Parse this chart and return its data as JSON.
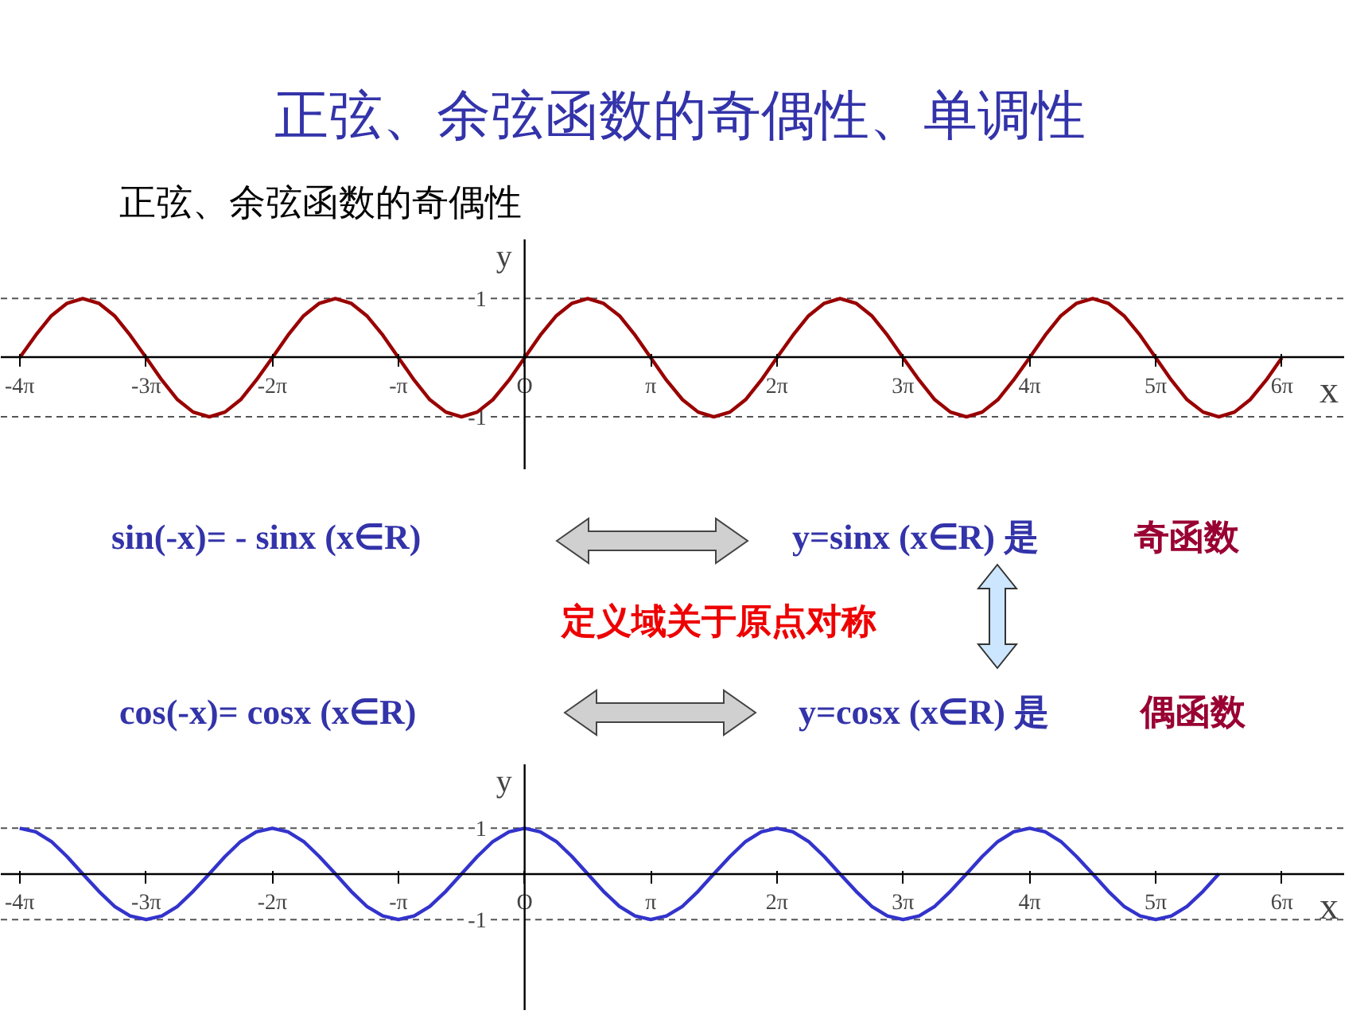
{
  "chart_data": [
    {
      "type": "line",
      "title": "正弦、余弦函数的奇偶性、单调性",
      "subtitle": "正弦、余弦函数的奇偶性",
      "xlabel": "x",
      "ylabel": "y",
      "xlim": [
        -13.04,
        20.42
      ],
      "ylim": [
        -1.9,
        2.0
      ],
      "xticks": [
        {
          "value": -12.57,
          "label": "-4π"
        },
        {
          "value": -9.42,
          "label": "-3π"
        },
        {
          "value": -6.28,
          "label": "-2π"
        },
        {
          "value": -3.14,
          "label": "-π"
        },
        {
          "value": 0,
          "label": "O"
        },
        {
          "value": 3.14,
          "label": "π"
        },
        {
          "value": 6.28,
          "label": "2π"
        },
        {
          "value": 9.42,
          "label": "3π"
        },
        {
          "value": 12.57,
          "label": "4π"
        },
        {
          "value": 15.71,
          "label": "5π"
        },
        {
          "value": 18.85,
          "label": "6π"
        }
      ],
      "yticks": [
        -1,
        1
      ],
      "ref_lines": [
        {
          "axis": "y",
          "value": 1,
          "line_style": "dashed",
          "color": "#555555"
        },
        {
          "axis": "y",
          "value": -1,
          "line_style": "dashed",
          "color": "#555555"
        }
      ],
      "grid": false,
      "x": [
        -12.57,
        -12.17,
        -11.78,
        -11.39,
        -11.0,
        -10.6,
        -10.21,
        -9.82,
        -9.42,
        -9.03,
        -8.64,
        -8.25,
        -7.85,
        -7.46,
        -7.07,
        -6.68,
        -6.28,
        -5.89,
        -5.5,
        -5.11,
        -4.71,
        -4.32,
        -3.93,
        -3.53,
        -3.14,
        -2.75,
        -2.36,
        -1.96,
        -1.57,
        -1.18,
        -0.79,
        -0.39,
        0,
        0.39,
        0.79,
        1.18,
        1.57,
        1.96,
        2.36,
        2.75,
        3.14,
        3.53,
        3.93,
        4.32,
        4.71,
        5.11,
        5.5,
        5.89,
        6.28,
        6.68,
        7.07,
        7.46,
        7.85,
        8.25,
        8.64,
        9.03,
        9.42,
        9.82,
        10.21,
        10.6,
        11.0,
        11.39,
        11.78,
        12.17,
        12.57,
        12.96,
        13.35,
        13.74,
        14.14,
        14.53,
        14.92,
        15.32,
        15.71,
        16.1,
        16.49,
        16.89,
        17.28,
        17.67,
        18.06,
        18.46,
        18.85
      ],
      "series": [
        {
          "color": "#990000",
          "values": [
            0,
            0.38,
            0.71,
            0.92,
            1,
            0.92,
            0.71,
            0.38,
            0,
            -0.38,
            -0.71,
            -0.92,
            -1,
            -0.92,
            -0.71,
            -0.38,
            0,
            0.38,
            0.71,
            0.92,
            1,
            0.92,
            0.71,
            0.38,
            0,
            -0.38,
            -0.71,
            -0.92,
            -1,
            -0.92,
            -0.71,
            -0.38,
            0,
            0.38,
            0.71,
            0.92,
            1,
            0.92,
            0.71,
            0.38,
            0,
            -0.38,
            -0.71,
            -0.92,
            -1,
            -0.92,
            -0.71,
            -0.38,
            0,
            0.38,
            0.71,
            0.92,
            1,
            0.92,
            0.71,
            0.38,
            0,
            -0.38,
            -0.71,
            -0.92,
            -1,
            -0.92,
            -0.71,
            -0.38,
            0,
            0.38,
            0.71,
            0.92,
            1,
            0.92,
            0.71,
            0.38,
            0,
            -0.38,
            -0.71,
            -0.92,
            -1,
            -0.92,
            -0.71,
            -0.38,
            0
          ]
        }
      ]
    },
    {
      "type": "line",
      "xlabel": "x",
      "ylabel": "y",
      "xlim": [
        -13.04,
        20.42
      ],
      "ylim": [
        -3.0,
        2.4
      ],
      "xticks": [
        {
          "value": -12.57,
          "label": "-4π"
        },
        {
          "value": -9.42,
          "label": "-3π"
        },
        {
          "value": -6.28,
          "label": "-2π"
        },
        {
          "value": -3.14,
          "label": "-π"
        },
        {
          "value": 0,
          "label": "O"
        },
        {
          "value": 3.14,
          "label": "π"
        },
        {
          "value": 6.28,
          "label": "2π"
        },
        {
          "value": 9.42,
          "label": "3π"
        },
        {
          "value": 12.57,
          "label": "4π"
        },
        {
          "value": 15.71,
          "label": "5π"
        },
        {
          "value": 18.85,
          "label": "6π"
        }
      ],
      "yticks": [
        -1,
        1
      ],
      "ref_lines": [
        {
          "axis": "y",
          "value": 1,
          "line_style": "dashed",
          "color": "#555555"
        },
        {
          "axis": "y",
          "value": -1,
          "line_style": "dashed",
          "color": "#555555"
        }
      ],
      "grid": false,
      "annotations": [
        "sin(-x)= - sinx   (x∈R)",
        "y=sinx  (x∈R)  是",
        "奇函数",
        "定义域关于原点对称",
        "cos(-x)= cosx   (x∈R)",
        "y=cosx  (x∈R)  是",
        "偶函数"
      ],
      "x": [
        -12.57,
        -12.17,
        -11.78,
        -11.39,
        -11.0,
        -10.6,
        -10.21,
        -9.82,
        -9.42,
        -9.03,
        -8.64,
        -8.25,
        -7.85,
        -7.46,
        -7.07,
        -6.68,
        -6.28,
        -5.89,
        -5.5,
        -5.11,
        -4.71,
        -4.32,
        -3.93,
        -3.53,
        -3.14,
        -2.75,
        -2.36,
        -1.96,
        -1.57,
        -1.18,
        -0.79,
        -0.39,
        0,
        0.39,
        0.79,
        1.18,
        1.57,
        1.96,
        2.36,
        2.75,
        3.14,
        3.53,
        3.93,
        4.32,
        4.71,
        5.11,
        5.5,
        5.89,
        6.28,
        6.68,
        7.07,
        7.46,
        7.85,
        8.25,
        8.64,
        9.03,
        9.42,
        9.82,
        10.21,
        10.6,
        11.0,
        11.39,
        11.78,
        12.17,
        12.57,
        12.96,
        13.35,
        13.74,
        14.14,
        14.53,
        14.92,
        15.32,
        15.71,
        16.1,
        16.49,
        16.89,
        17.28
      ],
      "series": [
        {
          "color": "#3333cc",
          "values": [
            1,
            0.92,
            0.71,
            0.38,
            0,
            -0.38,
            -0.71,
            -0.92,
            -1,
            -0.92,
            -0.71,
            -0.38,
            0,
            0.38,
            0.71,
            0.92,
            1,
            0.92,
            0.71,
            0.38,
            0,
            -0.38,
            -0.71,
            -0.92,
            -1,
            -0.92,
            -0.71,
            -0.38,
            0,
            0.38,
            0.71,
            0.92,
            1,
            0.92,
            0.71,
            0.38,
            0,
            -0.38,
            -0.71,
            -0.92,
            -1,
            -0.92,
            -0.71,
            -0.38,
            0,
            0.38,
            0.71,
            0.92,
            1,
            0.92,
            0.71,
            0.38,
            0,
            -0.38,
            -0.71,
            -0.92,
            -1,
            -0.92,
            -0.71,
            -0.38,
            0,
            0.38,
            0.71,
            0.92,
            1,
            0.92,
            0.71,
            0.38,
            0,
            -0.38,
            -0.71,
            -0.92,
            -1,
            -0.92,
            -0.71,
            -0.38,
            0
          ]
        }
      ]
    }
  ]
}
